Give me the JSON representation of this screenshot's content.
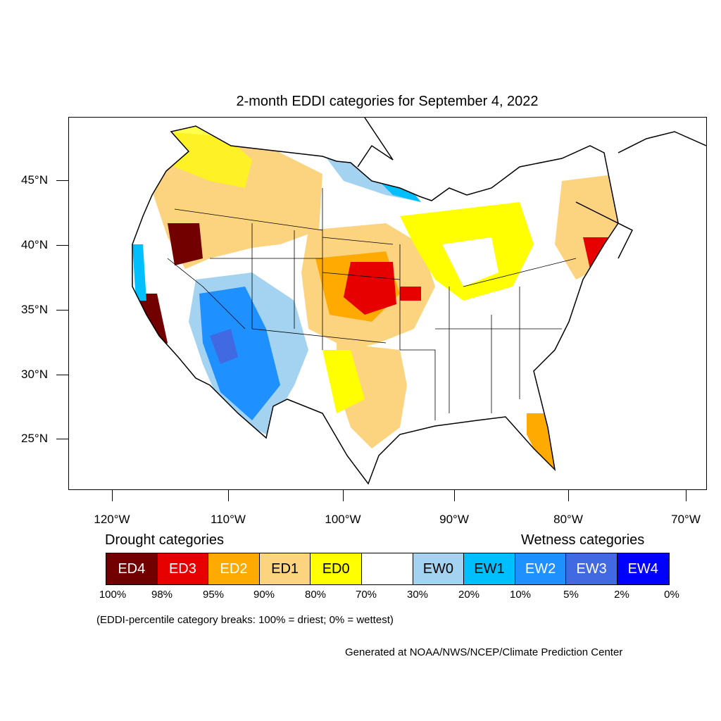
{
  "title": "2-month EDDI categories for September 4, 2022",
  "latitude_labels": [
    "45°N",
    "40°N",
    "35°N",
    "30°N",
    "25°N"
  ],
  "longitude_labels": [
    "120°W",
    "110°W",
    "100°W",
    "90°W",
    "80°W",
    "70°W"
  ],
  "legend": {
    "drought_heading": "Drought categories",
    "wetness_heading": "Wetness categories",
    "categories": [
      {
        "label": "ED4",
        "color": "#730000"
      },
      {
        "label": "ED3",
        "color": "#e60000"
      },
      {
        "label": "ED2",
        "color": "#ffaa00"
      },
      {
        "label": "ED1",
        "color": "#fcd37f"
      },
      {
        "label": "ED0",
        "color": "#ffff00"
      },
      {
        "label": "",
        "color": "#ffffff"
      },
      {
        "label": "EW0",
        "color": "#a3d3f0"
      },
      {
        "label": "EW1",
        "color": "#00bfff"
      },
      {
        "label": "EW2",
        "color": "#1e90ff"
      },
      {
        "label": "EW3",
        "color": "#4169e1"
      },
      {
        "label": "EW4",
        "color": "#0000ff"
      }
    ],
    "breaks": [
      "100%",
      "98%",
      "95%",
      "90%",
      "80%",
      "70%",
      "30%",
      "20%",
      "10%",
      "5%",
      "2%",
      "0%"
    ]
  },
  "note": "(EDDI-percentile category breaks: 100% = driest; 0% = wettest)",
  "credit": "Generated at NOAA/NWS/NCEP/Climate Prediction Center"
}
